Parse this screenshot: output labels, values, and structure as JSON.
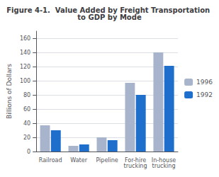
{
  "chart_data": {
    "type": "bar",
    "title": "Figure 4-1.  Value Added by Freight Transportation to GDP by Mode",
    "categories": [
      "Railroad",
      "Water",
      "Pipeline",
      "For-hire\ntrucking",
      "In-house\ntrucking"
    ],
    "series": [
      {
        "name": "1996",
        "color": "#a8b4cc",
        "values": [
          37,
          8,
          20,
          97,
          140
        ]
      },
      {
        "name": "1992",
        "color": "#1e6fcc",
        "values": [
          30,
          10,
          16,
          80,
          121
        ]
      }
    ],
    "ylabel": "Billions of Dollars",
    "ylim": [
      0,
      170
    ],
    "yticks": [
      0,
      20,
      40,
      60,
      80,
      100,
      120,
      140,
      160
    ],
    "grid": true,
    "legend": "right"
  }
}
